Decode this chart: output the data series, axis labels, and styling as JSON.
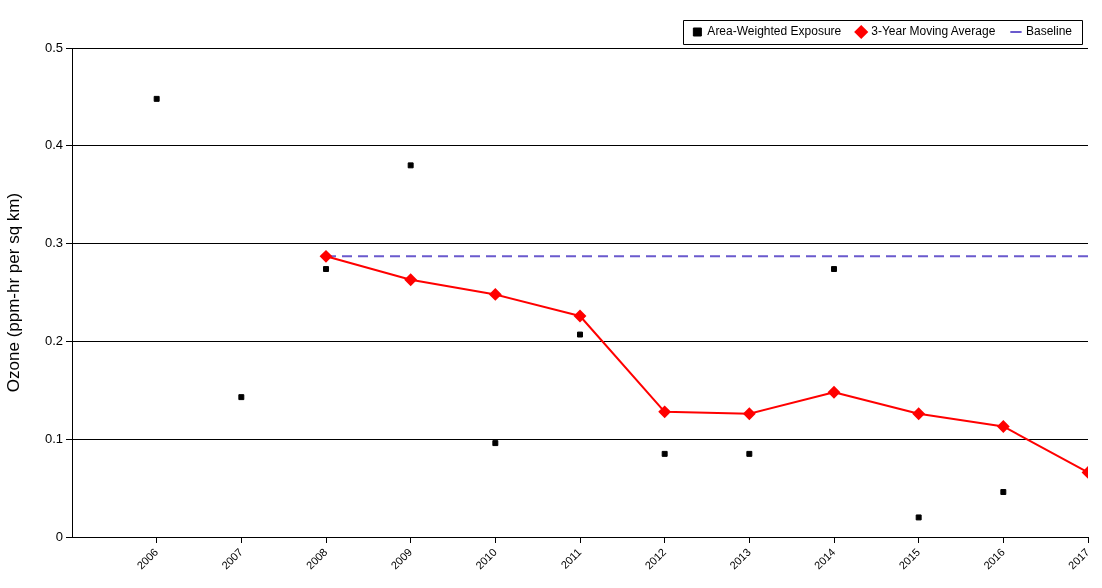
{
  "chart_data": {
    "type": "scatter",
    "ylabel": "Ozone (ppm-hr per sq km)",
    "xlim": [
      2005,
      2017
    ],
    "xticks": [
      2006,
      2007,
      2008,
      2009,
      2010,
      2011,
      2012,
      2013,
      2014,
      2015,
      2016,
      2017
    ],
    "ylim": [
      0,
      0.5
    ],
    "yticks": [
      0,
      0.1,
      0.2,
      0.3,
      0.4,
      0.5
    ],
    "grid": "y",
    "legend": "top right",
    "series": [
      {
        "name": "Area-Weighted Exposure",
        "type": "scatter",
        "color": "#000000",
        "marker": "square",
        "x": [
          2006,
          2007,
          2008,
          2009,
          2010,
          2011,
          2012,
          2013,
          2014,
          2015,
          2016
        ],
        "values": [
          0.448,
          0.143,
          0.274,
          0.38,
          0.096,
          0.207,
          0.085,
          0.085,
          0.274,
          0.02,
          0.046
        ]
      },
      {
        "name": "3-Year Moving Average",
        "type": "line",
        "color": "#ff0000",
        "marker": "diamond",
        "line_style": "solid",
        "x": [
          2008,
          2009,
          2010,
          2011,
          2012,
          2013,
          2014,
          2015,
          2016,
          2017
        ],
        "values": [
          0.287,
          0.263,
          0.248,
          0.226,
          0.128,
          0.126,
          0.148,
          0.126,
          0.113,
          0.066
        ]
      },
      {
        "name": "Baseline",
        "type": "line",
        "color": "#6a5acd",
        "marker": "none",
        "line_style": "dashed",
        "x": [
          2008,
          2017
        ],
        "values": [
          0.287,
          0.287
        ]
      }
    ]
  }
}
